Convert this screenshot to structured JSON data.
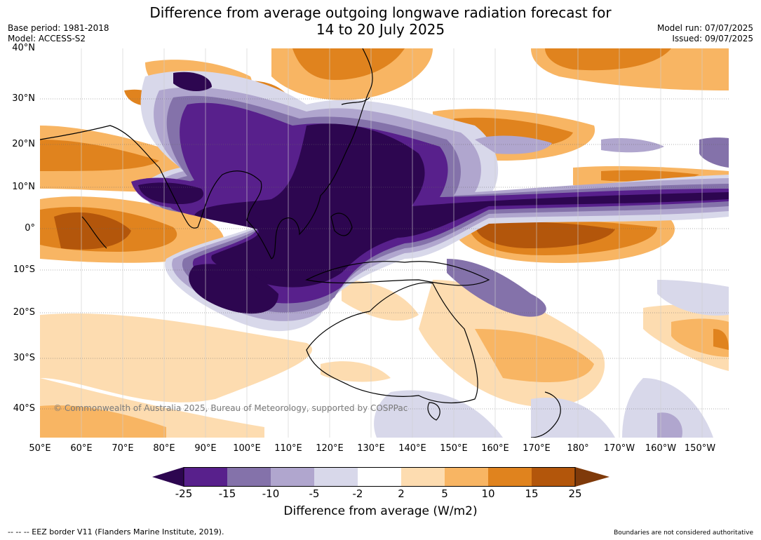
{
  "header": {
    "title_line1": "Difference from average outgoing longwave radiation forecast for",
    "title_line2": "14 to 20 July 2025",
    "base_period": "Base period: 1981-2018",
    "model": "Model: ACCESS-S2",
    "model_run": "Model run: 07/07/2025",
    "issued": "Issued: 09/07/2025"
  },
  "map": {
    "lat_labels": [
      "40°N",
      "30°N",
      "20°N",
      "10°N",
      "0°",
      "10°S",
      "20°S",
      "30°S",
      "40°S"
    ],
    "lon_labels": [
      "50°E",
      "60°E",
      "70°E",
      "80°E",
      "90°E",
      "100°E",
      "110°E",
      "120°E",
      "130°E",
      "140°E",
      "150°E",
      "160°E",
      "170°E",
      "180°",
      "170°W",
      "160°W",
      "150°W"
    ],
    "copyright": "© Commonwealth of Australia 2025, Bureau of Meteorology, supported by COSPPac"
  },
  "colorbar": {
    "ticks": [
      "-25",
      "-15",
      "-10",
      "-5",
      "-2",
      "2",
      "5",
      "10",
      "15",
      "25"
    ],
    "colors": [
      "#2d0650",
      "#58208c",
      "#8472aa",
      "#b0a6ce",
      "#d8d8ea",
      "#ffffff",
      "#fddcb0",
      "#f8b563",
      "#e0831e",
      "#b3560b",
      "#7f3a0a"
    ],
    "label": "Difference from average (W/m2)"
  },
  "footer": {
    "eez": "--  --  -- EEZ border V11 (Flanders Marine Institute, 2019).",
    "disclaimer": "Boundaries are not considered authoritative"
  }
}
